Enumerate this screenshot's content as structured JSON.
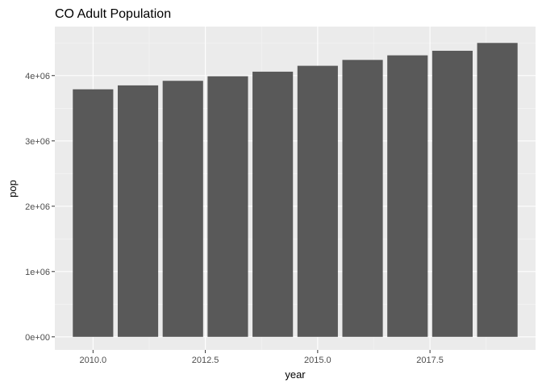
{
  "chart_data": {
    "type": "bar",
    "title": "CO Adult Population",
    "xlabel": "year",
    "ylabel": "pop",
    "x": [
      2010,
      2011,
      2012,
      2013,
      2014,
      2015,
      2016,
      2017,
      2018,
      2019
    ],
    "values": [
      3790000,
      3850000,
      3920000,
      3990000,
      4060000,
      4150000,
      4240000,
      4310000,
      4380000,
      4500000
    ],
    "xlim": [
      2009.15,
      2019.85
    ],
    "ylim": [
      -200000,
      4750000
    ],
    "x_ticks": [
      2010.0,
      2012.5,
      2015.0,
      2017.5
    ],
    "x_tick_labels": [
      "2010.0",
      "2012.5",
      "2015.0",
      "2017.5"
    ],
    "y_ticks": [
      0,
      1000000,
      2000000,
      3000000,
      4000000
    ],
    "y_tick_labels": [
      "0e+00",
      "1e+06",
      "2e+06",
      "3e+06",
      "4e+06"
    ],
    "grid": true,
    "colors": {
      "bar": "#595959",
      "panel": "#ebebeb",
      "grid_major": "#ffffff",
      "grid_minor": "#f5f5f5",
      "tick": "#333333"
    }
  }
}
